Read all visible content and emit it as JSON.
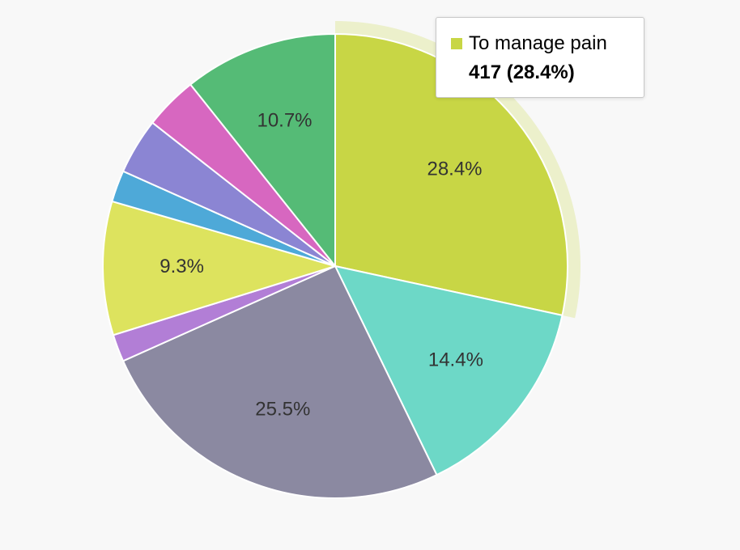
{
  "chart_data": {
    "type": "pie",
    "start_angle_deg": 0,
    "direction": "clockwise",
    "slices": [
      {
        "name": "To manage pain",
        "percent": 28.4,
        "label": "28.4%",
        "color": "#c8d645",
        "highlighted": true
      },
      {
        "name": "",
        "percent": 14.4,
        "label": "14.4%",
        "color": "#6dd8c7"
      },
      {
        "name": "",
        "percent": 25.5,
        "label": "25.5%",
        "color": "#8b89a1"
      },
      {
        "name": "",
        "percent": 1.9,
        "label": "",
        "color": "#b27ed6"
      },
      {
        "name": "",
        "percent": 9.3,
        "label": "9.3%",
        "color": "#dde35e"
      },
      {
        "name": "",
        "percent": 2.2,
        "label": "",
        "color": "#4ea9d8"
      },
      {
        "name": "",
        "percent": 3.9,
        "label": "",
        "color": "#8b85d3"
      },
      {
        "name": "",
        "percent": 3.7,
        "label": "",
        "color": "#d767c0"
      },
      {
        "name": "",
        "percent": 10.7,
        "label": "10.7%",
        "color": "#55bb76"
      }
    ]
  },
  "tooltip": {
    "series_name": "To manage pain",
    "value_text": "417 (28.4%)",
    "swatch_color": "#c8d645"
  }
}
